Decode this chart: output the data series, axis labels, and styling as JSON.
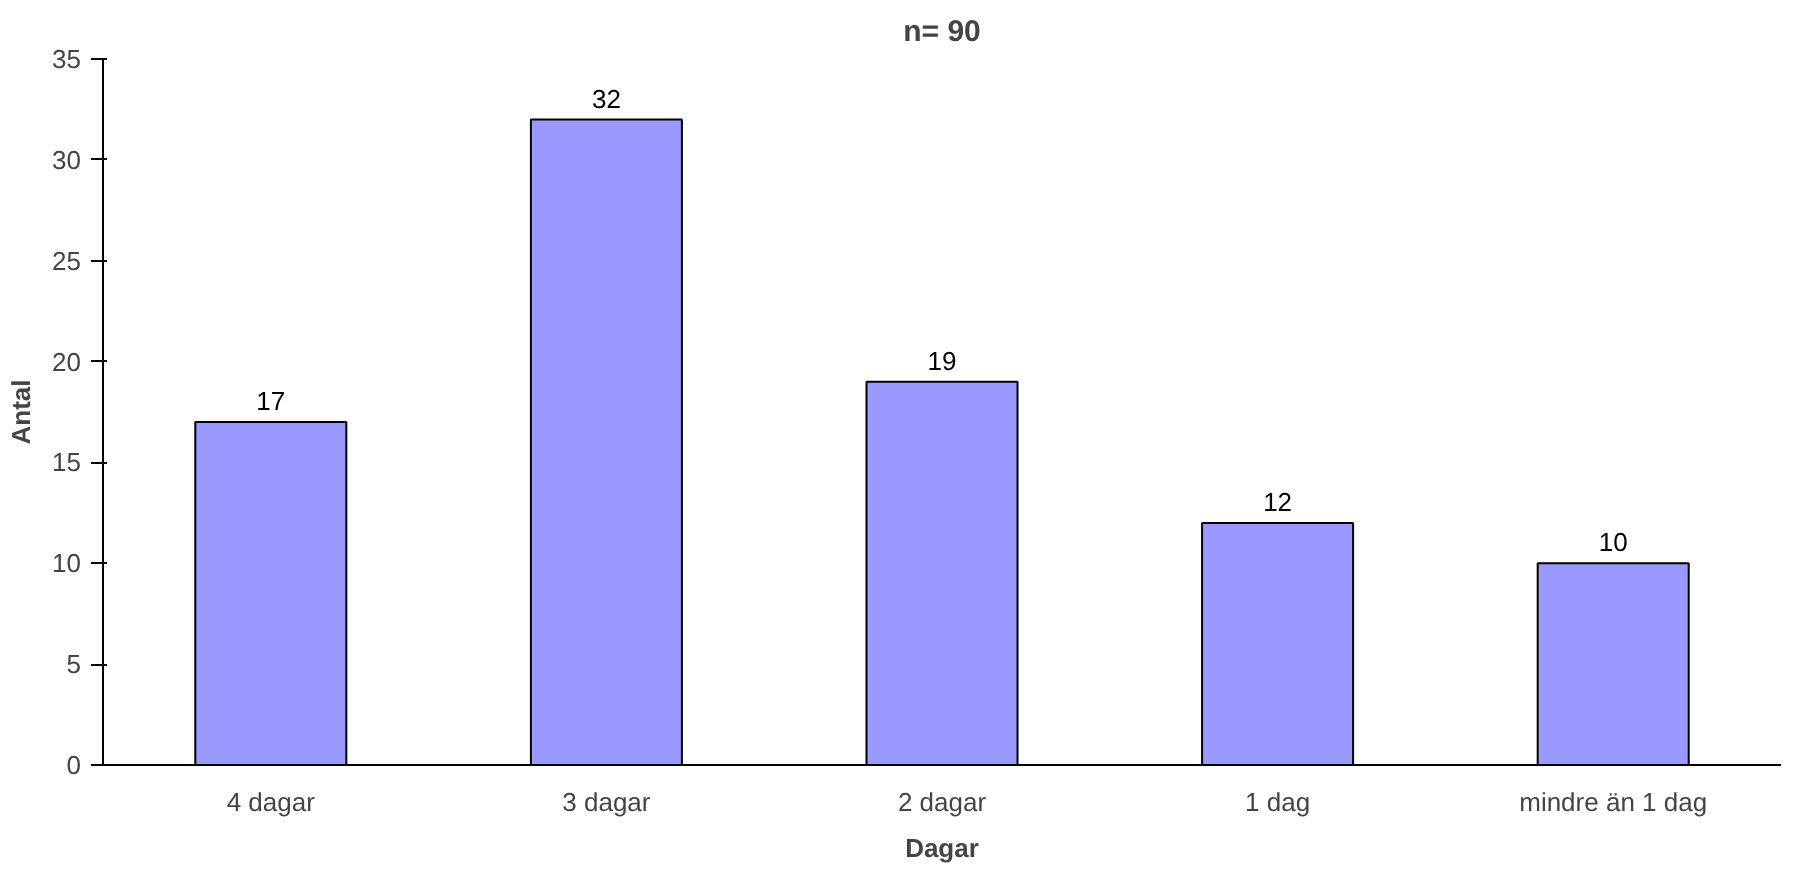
{
  "chart_data": {
    "type": "bar",
    "title": "n= 90",
    "xlabel": "Dagar",
    "ylabel": "Antal",
    "categories": [
      "4 dagar",
      "3 dagar",
      "2 dagar",
      "1 dag",
      "mindre än 1 dag"
    ],
    "values": [
      17,
      32,
      19,
      12,
      10
    ],
    "color": "#9999ff",
    "ylim": [
      0,
      35
    ],
    "yticks": [
      0,
      5,
      10,
      15,
      20,
      25,
      30,
      35
    ],
    "grid": false,
    "data_labels": true
  }
}
